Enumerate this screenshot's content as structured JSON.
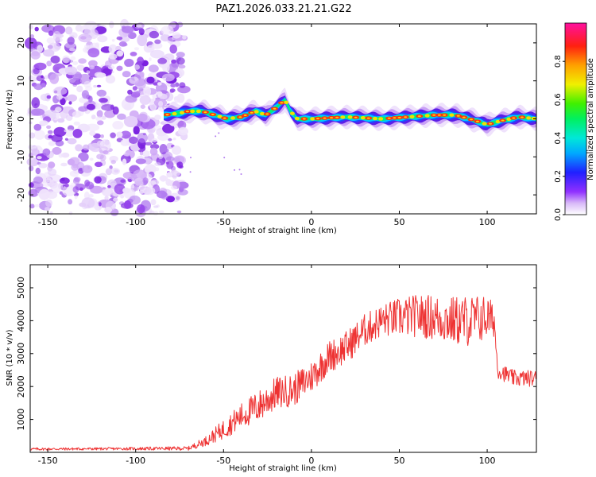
{
  "title": "PAZ1.2026.033.21.21.G22",
  "chart_data": [
    {
      "type": "heatmap",
      "name": "spectrogram",
      "xlabel": "Height of straight line (km)",
      "ylabel": "Frequency (Hz)",
      "xlim": [
        -160,
        128
      ],
      "ylim": [
        -25,
        25
      ],
      "xticks": [
        -150,
        -100,
        -50,
        0,
        50,
        100
      ],
      "yticks": [
        -20,
        -10,
        0,
        10,
        20
      ],
      "noise_region_x": [
        -160,
        -75
      ],
      "ridge": [
        {
          "x": -84,
          "f": 1.0
        },
        {
          "x": -75,
          "f": 1.5
        },
        {
          "x": -70,
          "f": 2.0
        },
        {
          "x": -62,
          "f": 2.0
        },
        {
          "x": -55,
          "f": 1.0
        },
        {
          "x": -48,
          "f": 0.0
        },
        {
          "x": -40,
          "f": 0.5
        },
        {
          "x": -32,
          "f": 2.0
        },
        {
          "x": -26,
          "f": 1.0
        },
        {
          "x": -20,
          "f": 3.0
        },
        {
          "x": -15,
          "f": 5.0
        },
        {
          "x": -12,
          "f": 2.0
        },
        {
          "x": -8,
          "f": 0.0
        },
        {
          "x": 0,
          "f": 0.0
        },
        {
          "x": 20,
          "f": 0.5
        },
        {
          "x": 40,
          "f": 0.0
        },
        {
          "x": 55,
          "f": 0.5
        },
        {
          "x": 70,
          "f": 1.0
        },
        {
          "x": 82,
          "f": 1.0
        },
        {
          "x": 90,
          "f": 0.0
        },
        {
          "x": 100,
          "f": -1.5
        },
        {
          "x": 108,
          "f": -0.5
        },
        {
          "x": 118,
          "f": 0.5
        },
        {
          "x": 128,
          "f": 0.0
        }
      ],
      "colorbar": {
        "label": "Normalized spectral amplitude",
        "range": [
          0.0,
          1.0
        ],
        "ticks": [
          0.0,
          0.2,
          0.4,
          0.6,
          0.8
        ],
        "tick_labels": [
          "0.0",
          "0.2",
          "0.4",
          "0.6",
          "0.8"
        ]
      }
    },
    {
      "type": "line",
      "name": "snr",
      "xlabel": "Height of straight line (km)",
      "ylabel": "SNR (10 * v/v)",
      "xlim": [
        -160,
        128
      ],
      "ylim": [
        0,
        5700
      ],
      "xticks": [
        -150,
        -100,
        -50,
        0,
        50,
        100
      ],
      "yticks": [
        1000,
        2000,
        3000,
        4000,
        5000
      ],
      "color": "#ee3333",
      "envelope": [
        {
          "x": -160,
          "y": 100,
          "amp": 40
        },
        {
          "x": -110,
          "y": 110,
          "amp": 40
        },
        {
          "x": -70,
          "y": 120,
          "amp": 60
        },
        {
          "x": -60,
          "y": 350,
          "amp": 150
        },
        {
          "x": -50,
          "y": 700,
          "amp": 300
        },
        {
          "x": -40,
          "y": 1100,
          "amp": 400
        },
        {
          "x": -30,
          "y": 1400,
          "amp": 500
        },
        {
          "x": -20,
          "y": 1800,
          "amp": 500
        },
        {
          "x": -10,
          "y": 1900,
          "amp": 500
        },
        {
          "x": 0,
          "y": 2300,
          "amp": 500
        },
        {
          "x": 10,
          "y": 2900,
          "amp": 500
        },
        {
          "x": 20,
          "y": 3200,
          "amp": 500
        },
        {
          "x": 30,
          "y": 3700,
          "amp": 500
        },
        {
          "x": 40,
          "y": 4000,
          "amp": 500
        },
        {
          "x": 50,
          "y": 4100,
          "amp": 600
        },
        {
          "x": 60,
          "y": 4150,
          "amp": 650
        },
        {
          "x": 70,
          "y": 4100,
          "amp": 700
        },
        {
          "x": 80,
          "y": 4000,
          "amp": 750
        },
        {
          "x": 90,
          "y": 4000,
          "amp": 800
        },
        {
          "x": 100,
          "y": 4100,
          "amp": 700
        },
        {
          "x": 104,
          "y": 4000,
          "amp": 500
        },
        {
          "x": 106,
          "y": 2500,
          "amp": 250
        },
        {
          "x": 115,
          "y": 2250,
          "amp": 250
        },
        {
          "x": 128,
          "y": 2250,
          "amp": 250
        }
      ]
    }
  ]
}
